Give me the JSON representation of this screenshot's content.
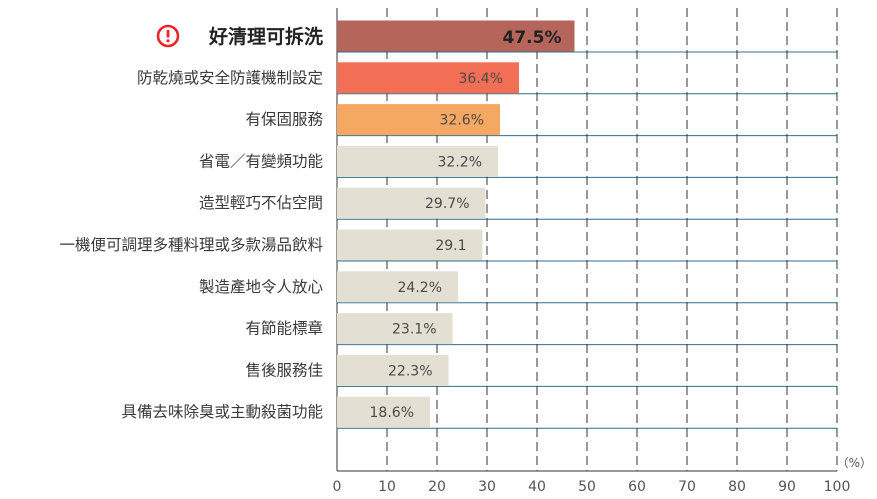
{
  "chart_data": {
    "type": "bar",
    "orientation": "horizontal",
    "categories": [
      "好清理可拆洗",
      "防乾燒或安全防護機制設定",
      "有保固服務",
      "省電／有變頻功能",
      "造型輕巧不佔空間",
      "一機便可調理多種料理或多款湯品飲料",
      "製造產地令人放心",
      "有節能標章",
      "售後服務佳",
      "具備去味除臭或主動殺菌功能"
    ],
    "values": [
      47.5,
      36.4,
      32.6,
      32.2,
      29.7,
      29.1,
      24.2,
      23.1,
      22.3,
      18.6
    ],
    "value_labels": [
      "47.5%",
      "36.4%",
      "32.6%",
      "32.2%",
      "29.7%",
      "29.1",
      "24.2%",
      "23.1%",
      "22.3%",
      "18.6%"
    ],
    "bar_colors": [
      "#b5655a",
      "#f26f55",
      "#f5a862",
      "#e3e0d3",
      "#e3e0d3",
      "#e3e0d3",
      "#e3e0d3",
      "#e3e0d3",
      "#e3e0d3",
      "#e3e0d3"
    ],
    "highlight_icon": "exclamation-circle-icon",
    "highlight_color": "#e8262a",
    "xlim": [
      0,
      100
    ],
    "xticks": [
      "0",
      "10",
      "20",
      "30",
      "40",
      "50",
      "60",
      "70",
      "80",
      "90",
      "100"
    ],
    "unit_label": "（%）",
    "grid": "vertical dashed",
    "row_separator_color": "#2e6f8e"
  }
}
